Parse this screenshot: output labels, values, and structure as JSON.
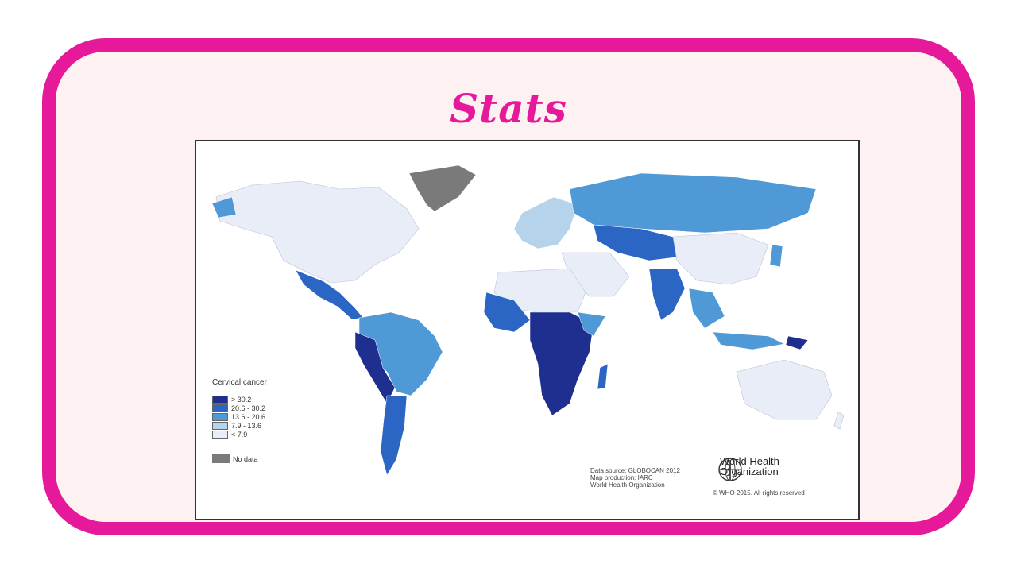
{
  "slide": {
    "title": "Stats"
  },
  "map": {
    "legend_title": "Cervical cancer",
    "legend_items": [
      {
        "label": "> 30.2",
        "color": "#1e2f8f"
      },
      {
        "label": "20.6 - 30.2",
        "color": "#2b66c4"
      },
      {
        "label": "13.6 - 20.6",
        "color": "#4f9ad6"
      },
      {
        "label": "7.9 - 13.6",
        "color": "#b6d3ec"
      },
      {
        "label": "< 7.9",
        "color": "#e9edf8"
      }
    ],
    "no_data_label": "No data",
    "no_data_color": "#7a7a7a",
    "credits": [
      "Data source: GLOBOCAN 2012",
      "Map production: IARC",
      "World Health Organization"
    ],
    "who_line1": "World Health",
    "who_line2": "Organization",
    "copyright": "© WHO 2015. All rights reserved"
  },
  "colors": {
    "accent": "#e5199a",
    "card_bg": "#fdf1f1"
  }
}
